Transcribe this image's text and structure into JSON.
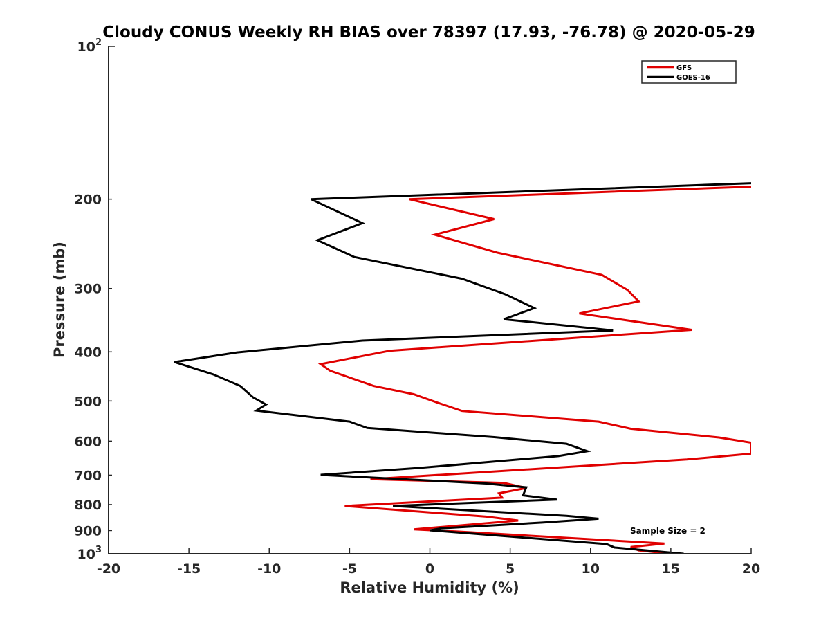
{
  "chart_data": {
    "type": "line",
    "title": "Cloudy CONUS Weekly RH BIAS over 78397 (17.93, -76.78) @ 2020-05-29",
    "xlabel": "Relative Humidity (%)",
    "ylabel": "Pressure (mb)",
    "xlim": [
      -20,
      20
    ],
    "ylim": [
      100,
      1000
    ],
    "y_scale": "log",
    "y_reversed": true,
    "x_ticks": [
      -20,
      -15,
      -10,
      -5,
      0,
      5,
      10,
      15,
      20
    ],
    "x_tick_labels": [
      "-20",
      "-15",
      "-10",
      "-5",
      "0",
      "5",
      "10",
      "15",
      "20"
    ],
    "y_ticks": [
      100,
      200,
      300,
      400,
      500,
      600,
      700,
      800,
      900,
      1000
    ],
    "y_tick_labels": [
      {
        "base": "10",
        "exp": "2"
      },
      {
        "text": "200"
      },
      {
        "text": "300"
      },
      {
        "text": "400"
      },
      {
        "text": "500"
      },
      {
        "text": "600"
      },
      {
        "text": "700"
      },
      {
        "text": "800"
      },
      {
        "text": "900"
      },
      {
        "base": "10",
        "exp": "3"
      }
    ],
    "grid": false,
    "legend_position": "top-right",
    "annotation": "Sample Size = 2",
    "series": [
      {
        "name": "GFS",
        "color": "#e00000",
        "points": [
          [
            15.0,
            1000
          ],
          [
            13.0,
            985
          ],
          [
            12.5,
            970
          ],
          [
            14.6,
            955
          ],
          [
            2.0,
            905
          ],
          [
            -1.0,
            895
          ],
          [
            5.5,
            860
          ],
          [
            3.5,
            845
          ],
          [
            -5.3,
            805
          ],
          [
            4.5,
            775
          ],
          [
            4.3,
            760
          ],
          [
            6.0,
            742
          ],
          [
            4.6,
            725
          ],
          [
            -3.7,
            713
          ],
          [
            16.0,
            652
          ],
          [
            20.0,
            635
          ],
          [
            20.0,
            604
          ],
          [
            18.0,
            590
          ],
          [
            12.5,
            567
          ],
          [
            10.5,
            549
          ],
          [
            2.0,
            523
          ],
          [
            0.5,
            504
          ],
          [
            -1.0,
            485
          ],
          [
            -3.5,
            467
          ],
          [
            -6.2,
            436
          ],
          [
            -6.8,
            423
          ],
          [
            -2.5,
            398
          ],
          [
            16.3,
            362
          ],
          [
            9.3,
            336
          ],
          [
            13.0,
            318
          ],
          [
            12.3,
            302
          ],
          [
            10.7,
            282
          ],
          [
            4.2,
            255
          ],
          [
            0.3,
            235
          ],
          [
            4.0,
            219
          ],
          [
            -1.3,
            200
          ],
          [
            20.0,
            189
          ]
        ]
      },
      {
        "name": "GOES-16",
        "color": "#000000",
        "points": [
          [
            15.8,
            1000
          ],
          [
            11.5,
            972
          ],
          [
            11.0,
            957
          ],
          [
            0.0,
            899
          ],
          [
            0.7,
            891
          ],
          [
            7.0,
            868
          ],
          [
            10.5,
            853
          ],
          [
            8.5,
            842
          ],
          [
            -2.3,
            805
          ],
          [
            7.9,
            782
          ],
          [
            5.8,
            767
          ],
          [
            6.0,
            740
          ],
          [
            3.5,
            727
          ],
          [
            -6.8,
            699
          ],
          [
            -0.8,
            678
          ],
          [
            8.0,
            642
          ],
          [
            9.8,
            628
          ],
          [
            8.5,
            607
          ],
          [
            4.0,
            589
          ],
          [
            -3.9,
            565
          ],
          [
            -5.0,
            549
          ],
          [
            -10.8,
            522
          ],
          [
            -10.2,
            508
          ],
          [
            -11.0,
            492
          ],
          [
            -11.8,
            467
          ],
          [
            -13.5,
            443
          ],
          [
            -15.9,
            419
          ],
          [
            -12.0,
            401
          ],
          [
            -4.2,
            380
          ],
          [
            11.4,
            363
          ],
          [
            4.6,
            345
          ],
          [
            6.5,
            328
          ],
          [
            4.7,
            308
          ],
          [
            2.0,
            287
          ],
          [
            -4.7,
            260
          ],
          [
            -7.0,
            241
          ],
          [
            -4.2,
            223
          ],
          [
            -7.4,
            200
          ],
          [
            20.0,
            186
          ]
        ]
      }
    ]
  }
}
